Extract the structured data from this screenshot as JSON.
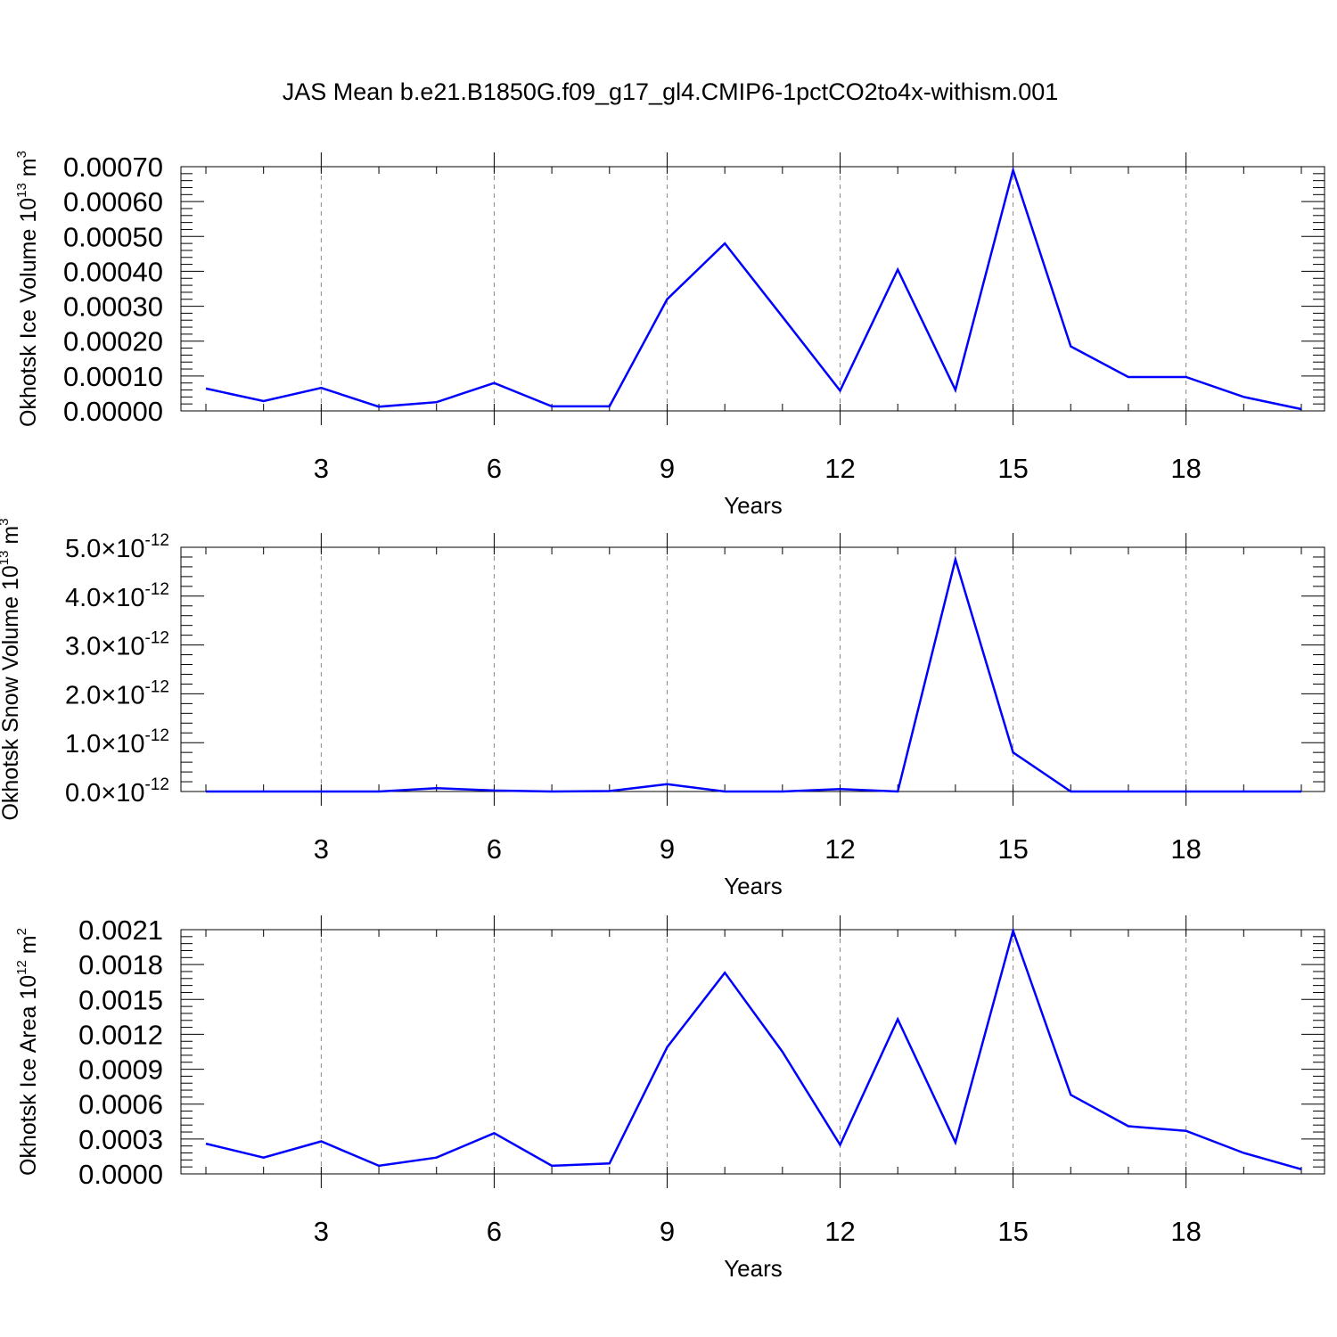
{
  "figure": {
    "title": "JAS Mean b.e21.B1850G.f09_g17_gl4.CMIP6-1pctCO2to4x-withism.001",
    "line_color": "#0000ff"
  },
  "chart_data": [
    {
      "type": "line",
      "xlabel": "Years",
      "ylabel": "Okhotsk Ice Volume 10",
      "ylabel_exp": "13",
      "ylabel_unit": " m",
      "ylabel_unit_exp": "3",
      "xlim": [
        1,
        20
      ],
      "ylim": [
        0,
        0.0007
      ],
      "xticks": [
        3,
        6,
        9,
        12,
        15,
        18
      ],
      "yticks": [
        "0.00000",
        "0.00010",
        "0.00020",
        "0.00030",
        "0.00040",
        "0.00050",
        "0.00060",
        "0.00070"
      ],
      "ytick_values": [
        0,
        0.0001,
        0.0002,
        0.0003,
        0.0004,
        0.0005,
        0.0006,
        0.0007
      ],
      "grid": "dashed vertical at major x ticks",
      "x": [
        1,
        2,
        3,
        4,
        5,
        6,
        7,
        8,
        9,
        10,
        11,
        12,
        13,
        14,
        15,
        16,
        17,
        18,
        19,
        20
      ],
      "values": [
        6.4e-05,
        2.8e-05,
        6.6e-05,
        1.2e-05,
        2.5e-05,
        8e-05,
        1.3e-05,
        1.3e-05,
        0.00032,
        0.00048,
        0.00027,
        5.8e-05,
        0.000405,
        6e-05,
        0.00069,
        0.000185,
        9.7e-05,
        9.7e-05,
        4e-05,
        5e-06
      ]
    },
    {
      "type": "line",
      "xlabel": "Years",
      "ylabel": "Okhotsk Snow Volume 10",
      "ylabel_exp": "13",
      "ylabel_unit": " m",
      "ylabel_unit_exp": "3",
      "xlim": [
        1,
        20
      ],
      "ylim": [
        0,
        5e-12
      ],
      "xticks": [
        3,
        6,
        9,
        12,
        15,
        18
      ],
      "yticks": [
        "0.0",
        "1.0",
        "2.0",
        "3.0",
        "4.0",
        "5.0"
      ],
      "ytick_values": [
        0,
        1e-12,
        2e-12,
        3e-12,
        4e-12,
        5e-12
      ],
      "ytick_suffix": "×10",
      "ytick_exp": "-12",
      "grid": "dashed vertical at major x ticks",
      "x": [
        1,
        2,
        3,
        4,
        5,
        6,
        7,
        8,
        9,
        10,
        11,
        12,
        13,
        14,
        15,
        16,
        17,
        18,
        19,
        20
      ],
      "values": [
        0.0,
        0.0,
        0.0,
        0.0,
        7e-14,
        2e-14,
        0.0,
        1e-14,
        1.5e-13,
        0.0,
        0.0,
        5e-14,
        0.0,
        4.75e-12,
        8e-13,
        0.0,
        0.0,
        0.0,
        0.0,
        0.0
      ]
    },
    {
      "type": "line",
      "xlabel": "Years",
      "ylabel": "Okhotsk Ice Area 10",
      "ylabel_exp": "12",
      "ylabel_unit": " m",
      "ylabel_unit_exp": "2",
      "xlim": [
        1,
        20
      ],
      "ylim": [
        0,
        0.0021
      ],
      "xticks": [
        3,
        6,
        9,
        12,
        15,
        18
      ],
      "yticks": [
        "0.0000",
        "0.0003",
        "0.0006",
        "0.0009",
        "0.0012",
        "0.0015",
        "0.0018",
        "0.0021"
      ],
      "ytick_values": [
        0,
        0.0003,
        0.0006,
        0.0009,
        0.0012,
        0.0015,
        0.0018,
        0.0021
      ],
      "grid": "dashed vertical at major x ticks",
      "x": [
        1,
        2,
        3,
        4,
        5,
        6,
        7,
        8,
        9,
        10,
        11,
        12,
        13,
        14,
        15,
        16,
        17,
        18,
        19,
        20
      ],
      "values": [
        0.00026,
        0.00014,
        0.00028,
        7e-05,
        0.00014,
        0.00035,
        7e-05,
        9e-05,
        0.00109,
        0.00173,
        0.00105,
        0.00025,
        0.00133,
        0.00027,
        0.00209,
        0.00068,
        0.00041,
        0.00037,
        0.00018,
        4e-05
      ]
    }
  ]
}
